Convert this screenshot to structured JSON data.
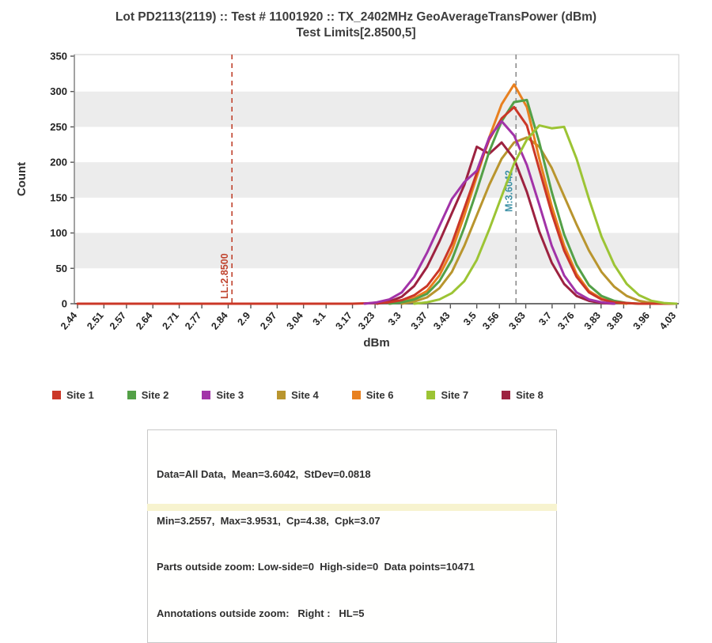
{
  "title": {
    "line1": "Lot PD2113(2119) :: Test # 11001920 :: TX_2402MHz GeoAverageTransPower (dBm)",
    "line2": "Test Limits[2.8500,5]"
  },
  "chart_data": {
    "type": "line",
    "title": "Lot PD2113(2119) :: Test # 11001920 :: TX_2402MHz GeoAverageTransPower (dBm) / Test Limits[2.8500,5]",
    "xlabel": "dBm",
    "ylabel": "Count",
    "xlim": [
      2.44,
      4.03
    ],
    "ylim": [
      0,
      350
    ],
    "x_ticks": [
      "2.44",
      "2.51",
      "2.57",
      "2.64",
      "2.71",
      "2.77",
      "2.84",
      "2.9",
      "2.97",
      "3.04",
      "3.1",
      "3.17",
      "3.23",
      "3.3",
      "3.37",
      "3.43",
      "3.5",
      "3.56",
      "3.63",
      "3.7",
      "3.76",
      "3.83",
      "3.89",
      "3.96",
      "4.03"
    ],
    "y_ticks": [
      0,
      50,
      100,
      150,
      200,
      250,
      300,
      350
    ],
    "grid_bands": [
      [
        50,
        100
      ],
      [
        150,
        200
      ],
      [
        250,
        300
      ]
    ],
    "band_color": "#ececec",
    "legend_position": "bottom",
    "z_order": [
      "Site 4",
      "Site 8",
      "Site 6",
      "Site 2",
      "Site 1",
      "Site 3",
      "Site 7"
    ],
    "annotations": [
      {
        "type": "vline",
        "x": 2.85,
        "label": "LL:2.8500",
        "color": "#c0442e",
        "label_color": "#c0442e",
        "style": "dashed",
        "label_y": 322
      },
      {
        "type": "vline",
        "x": 3.6042,
        "label": "M:3.6042",
        "color": "#8c8c8c",
        "label_color": "#3d91a6",
        "style": "dashed",
        "label_y": 212
      }
    ],
    "series": [
      {
        "name": "Site 1",
        "color": "#cb3727",
        "points": [
          [
            2.44,
            0
          ],
          [
            3.169,
            0
          ],
          [
            3.235,
            1
          ],
          [
            3.268,
            2
          ],
          [
            3.301,
            5
          ],
          [
            3.334,
            12
          ],
          [
            3.368,
            25
          ],
          [
            3.401,
            48
          ],
          [
            3.434,
            85
          ],
          [
            3.467,
            135
          ],
          [
            3.5,
            185
          ],
          [
            3.533,
            232
          ],
          [
            3.566,
            262
          ],
          [
            3.599,
            278
          ],
          [
            3.633,
            252
          ],
          [
            3.666,
            190
          ],
          [
            3.699,
            128
          ],
          [
            3.732,
            75
          ],
          [
            3.765,
            38
          ],
          [
            3.798,
            16
          ],
          [
            3.831,
            6
          ],
          [
            3.865,
            2
          ],
          [
            3.898,
            1
          ],
          [
            3.931,
            0
          ],
          [
            4.03,
            0
          ]
        ]
      },
      {
        "name": "Site 2",
        "color": "#53a047",
        "points": [
          [
            3.268,
            0
          ],
          [
            3.301,
            2
          ],
          [
            3.334,
            6
          ],
          [
            3.368,
            14
          ],
          [
            3.401,
            32
          ],
          [
            3.434,
            62
          ],
          [
            3.467,
            108
          ],
          [
            3.5,
            160
          ],
          [
            3.533,
            215
          ],
          [
            3.566,
            258
          ],
          [
            3.599,
            285
          ],
          [
            3.633,
            288
          ],
          [
            3.666,
            228
          ],
          [
            3.699,
            158
          ],
          [
            3.732,
            98
          ],
          [
            3.765,
            55
          ],
          [
            3.798,
            26
          ],
          [
            3.831,
            11
          ],
          [
            3.865,
            4
          ],
          [
            3.898,
            1
          ],
          [
            3.931,
            0
          ]
        ]
      },
      {
        "name": "Site 3",
        "color": "#a233a8",
        "points": [
          [
            3.202,
            0
          ],
          [
            3.235,
            2
          ],
          [
            3.268,
            6
          ],
          [
            3.301,
            16
          ],
          [
            3.334,
            38
          ],
          [
            3.368,
            72
          ],
          [
            3.401,
            110
          ],
          [
            3.434,
            148
          ],
          [
            3.467,
            172
          ],
          [
            3.5,
            188
          ],
          [
            3.533,
            235
          ],
          [
            3.566,
            258
          ],
          [
            3.599,
            238
          ],
          [
            3.633,
            196
          ],
          [
            3.666,
            140
          ],
          [
            3.699,
            82
          ],
          [
            3.732,
            40
          ],
          [
            3.765,
            16
          ],
          [
            3.798,
            6
          ],
          [
            3.831,
            2
          ],
          [
            3.865,
            0
          ]
        ]
      },
      {
        "name": "Site 4",
        "color": "#b9952e",
        "points": [
          [
            3.301,
            0
          ],
          [
            3.334,
            3
          ],
          [
            3.368,
            9
          ],
          [
            3.401,
            22
          ],
          [
            3.434,
            45
          ],
          [
            3.467,
            82
          ],
          [
            3.5,
            125
          ],
          [
            3.533,
            168
          ],
          [
            3.566,
            205
          ],
          [
            3.599,
            228
          ],
          [
            3.633,
            235
          ],
          [
            3.666,
            222
          ],
          [
            3.699,
            192
          ],
          [
            3.732,
            152
          ],
          [
            3.765,
            112
          ],
          [
            3.798,
            75
          ],
          [
            3.831,
            45
          ],
          [
            3.865,
            24
          ],
          [
            3.898,
            11
          ],
          [
            3.931,
            4
          ],
          [
            3.964,
            1
          ],
          [
            3.997,
            0
          ]
        ]
      },
      {
        "name": "Site 6",
        "color": "#e8801f",
        "points": [
          [
            3.268,
            0
          ],
          [
            3.301,
            3
          ],
          [
            3.334,
            8
          ],
          [
            3.368,
            18
          ],
          [
            3.401,
            40
          ],
          [
            3.434,
            75
          ],
          [
            3.467,
            125
          ],
          [
            3.5,
            180
          ],
          [
            3.533,
            235
          ],
          [
            3.566,
            282
          ],
          [
            3.599,
            310
          ],
          [
            3.633,
            278
          ],
          [
            3.666,
            205
          ],
          [
            3.699,
            138
          ],
          [
            3.732,
            82
          ],
          [
            3.765,
            42
          ],
          [
            3.798,
            18
          ],
          [
            3.831,
            7
          ],
          [
            3.865,
            2
          ],
          [
            3.898,
            0
          ]
        ]
      },
      {
        "name": "Site 7",
        "color": "#9cc434",
        "points": [
          [
            3.334,
            0
          ],
          [
            3.368,
            2
          ],
          [
            3.401,
            6
          ],
          [
            3.434,
            15
          ],
          [
            3.467,
            32
          ],
          [
            3.5,
            62
          ],
          [
            3.533,
            105
          ],
          [
            3.566,
            152
          ],
          [
            3.599,
            198
          ],
          [
            3.633,
            232
          ],
          [
            3.666,
            252
          ],
          [
            3.699,
            248
          ],
          [
            3.732,
            250
          ],
          [
            3.765,
            205
          ],
          [
            3.798,
            148
          ],
          [
            3.831,
            95
          ],
          [
            3.865,
            55
          ],
          [
            3.898,
            28
          ],
          [
            3.931,
            12
          ],
          [
            3.964,
            4
          ],
          [
            3.997,
            1
          ],
          [
            4.03,
            0
          ]
        ]
      },
      {
        "name": "Site 8",
        "color": "#9d2240",
        "points": [
          [
            3.235,
            0
          ],
          [
            3.268,
            3
          ],
          [
            3.301,
            10
          ],
          [
            3.334,
            25
          ],
          [
            3.368,
            52
          ],
          [
            3.401,
            88
          ],
          [
            3.434,
            128
          ],
          [
            3.467,
            168
          ],
          [
            3.5,
            222
          ],
          [
            3.533,
            212
          ],
          [
            3.566,
            228
          ],
          [
            3.599,
            205
          ],
          [
            3.633,
            158
          ],
          [
            3.666,
            102
          ],
          [
            3.699,
            58
          ],
          [
            3.732,
            28
          ],
          [
            3.765,
            11
          ],
          [
            3.798,
            4
          ],
          [
            3.831,
            1
          ],
          [
            3.865,
            0
          ]
        ]
      }
    ]
  },
  "stats_box": {
    "lines": [
      "Data=All Data,  Mean=3.6042,  StDev=0.0818",
      "Min=3.2557,  Max=3.9531,  Cp=4.38,  Cpk=3.07",
      "Parts outside zoom: Low-side=0  High-side=0  Data points=10471",
      "Annotations outside zoom:   Right :   HL=5"
    ]
  }
}
